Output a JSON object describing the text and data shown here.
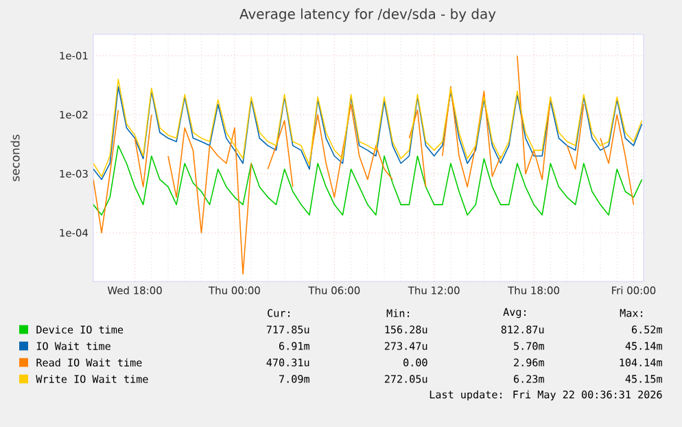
{
  "chart_data": {
    "type": "line",
    "title": "Average latency for /dev/sda - by day",
    "ylabel": "seconds",
    "log": "y",
    "grid": true,
    "legend": "bottom",
    "marker": "none",
    "line_style": "solid",
    "xlim": [
      "2026-05-20T15:30",
      "2026-05-22T00:36"
    ],
    "ylim": [
      1.5e-05,
      0.23
    ],
    "xticks": [
      {
        "value": "2026-05-20T18:00",
        "label": "Wed 18:00"
      },
      {
        "value": "2026-05-21T00:00",
        "label": "Thu 00:00"
      },
      {
        "value": "2026-05-21T06:00",
        "label": "Thu 06:00"
      },
      {
        "value": "2026-05-21T12:00",
        "label": "Thu 12:00"
      },
      {
        "value": "2026-05-21T18:00",
        "label": "Thu 18:00"
      },
      {
        "value": "2026-05-22T00:00",
        "label": "Fri 00:00"
      }
    ],
    "yticks": [
      {
        "value": 0.0001,
        "label": "1e-04"
      },
      {
        "value": 0.001,
        "label": "1e-03"
      },
      {
        "value": 0.01,
        "label": "1e-02"
      },
      {
        "value": 0.1,
        "label": "1e-01"
      }
    ],
    "x": [
      "2026-05-20T15:30",
      "2026-05-20T16:00",
      "2026-05-20T16:30",
      "2026-05-20T17:00",
      "2026-05-20T17:30",
      "2026-05-20T18:00",
      "2026-05-20T18:30",
      "2026-05-20T19:00",
      "2026-05-20T19:30",
      "2026-05-20T20:00",
      "2026-05-20T20:30",
      "2026-05-20T21:00",
      "2026-05-20T21:30",
      "2026-05-20T22:00",
      "2026-05-20T22:30",
      "2026-05-20T23:00",
      "2026-05-20T23:30",
      "2026-05-21T00:00",
      "2026-05-21T00:30",
      "2026-05-21T01:00",
      "2026-05-21T01:30",
      "2026-05-21T02:00",
      "2026-05-21T02:30",
      "2026-05-21T03:00",
      "2026-05-21T03:30",
      "2026-05-21T04:00",
      "2026-05-21T04:30",
      "2026-05-21T05:00",
      "2026-05-21T05:30",
      "2026-05-21T06:00",
      "2026-05-21T06:30",
      "2026-05-21T07:00",
      "2026-05-21T07:30",
      "2026-05-21T08:00",
      "2026-05-21T08:30",
      "2026-05-21T09:00",
      "2026-05-21T09:30",
      "2026-05-21T10:00",
      "2026-05-21T10:30",
      "2026-05-21T11:00",
      "2026-05-21T11:30",
      "2026-05-21T12:00",
      "2026-05-21T12:30",
      "2026-05-21T13:00",
      "2026-05-21T13:30",
      "2026-05-21T14:00",
      "2026-05-21T14:30",
      "2026-05-21T15:00",
      "2026-05-21T15:30",
      "2026-05-21T16:00",
      "2026-05-21T16:30",
      "2026-05-21T17:00",
      "2026-05-21T17:30",
      "2026-05-21T18:00",
      "2026-05-21T18:30",
      "2026-05-21T19:00",
      "2026-05-21T19:30",
      "2026-05-21T20:00",
      "2026-05-21T20:30",
      "2026-05-21T21:00",
      "2026-05-21T21:30",
      "2026-05-21T22:00",
      "2026-05-21T22:30",
      "2026-05-21T23:00",
      "2026-05-21T23:30",
      "2026-05-22T00:00",
      "2026-05-22T00:30"
    ],
    "series": [
      {
        "name": "Device IO time",
        "color": "#00cc00",
        "values": [
          0.0003,
          0.0002,
          0.0004,
          0.003,
          0.0015,
          0.0006,
          0.0003,
          0.002,
          0.0008,
          0.0006,
          0.0003,
          0.0015,
          0.0007,
          0.0005,
          0.0003,
          0.0012,
          0.0006,
          0.0004,
          0.0003,
          0.0015,
          0.0006,
          0.0004,
          0.0003,
          0.0012,
          0.0005,
          0.0003,
          0.0002,
          0.0015,
          0.0006,
          0.0003,
          0.0002,
          0.0012,
          0.0006,
          0.0003,
          0.0002,
          0.002,
          0.0007,
          0.0003,
          0.0003,
          0.002,
          0.0006,
          0.0003,
          0.0003,
          0.0015,
          0.0005,
          0.0002,
          0.0003,
          0.0018,
          0.0006,
          0.0003,
          0.0003,
          0.0015,
          0.0006,
          0.0003,
          0.0002,
          0.0015,
          0.0006,
          0.0004,
          0.0003,
          0.0015,
          0.0005,
          0.0003,
          0.0002,
          0.0012,
          0.0005,
          0.0004,
          0.0008
        ]
      },
      {
        "name": "IO Wait time",
        "color": "#0066b3",
        "values": [
          0.0012,
          0.0008,
          0.0015,
          0.03,
          0.006,
          0.004,
          0.0018,
          0.025,
          0.005,
          0.004,
          0.0035,
          0.02,
          0.004,
          0.0035,
          0.003,
          0.015,
          0.004,
          0.0025,
          0.0015,
          0.018,
          0.004,
          0.003,
          0.0025,
          0.02,
          0.003,
          0.0025,
          0.0012,
          0.018,
          0.004,
          0.002,
          0.0015,
          0.02,
          0.003,
          0.0025,
          0.002,
          0.017,
          0.003,
          0.0015,
          0.002,
          0.02,
          0.003,
          0.002,
          0.003,
          0.025,
          0.004,
          0.0015,
          0.0025,
          0.018,
          0.003,
          0.0015,
          0.003,
          0.022,
          0.004,
          0.002,
          0.002,
          0.017,
          0.004,
          0.003,
          0.0025,
          0.02,
          0.004,
          0.0025,
          0.003,
          0.018,
          0.004,
          0.003,
          0.007
        ]
      },
      {
        "name": "Read IO Wait time",
        "color": "#ff8000",
        "values": [
          0.0008,
          0.0001,
          0.001,
          0.012,
          null,
          0.004,
          0.0006,
          0.01,
          null,
          0.002,
          0.0004,
          0.006,
          0.0025,
          0.0001,
          0.003,
          0.002,
          0.0015,
          0.006,
          2e-05,
          0.0015,
          null,
          0.0012,
          0.003,
          0.008,
          0.0006,
          null,
          0.0015,
          0.01,
          0.0015,
          0.0004,
          0.0025,
          0.015,
          0.002,
          0.0008,
          0.003,
          0.0012,
          0.0008,
          null,
          0.004,
          0.012,
          0.0006,
          null,
          0.002,
          0.03,
          0.002,
          0.0006,
          0.003,
          0.025,
          0.0009,
          0.002,
          null,
          0.1,
          0.001,
          0.0025,
          0.0008,
          0.02,
          null,
          0.003,
          0.0012,
          0.015,
          null,
          0.004,
          0.0015,
          0.01,
          0.002,
          0.0003,
          null
        ]
      },
      {
        "name": "Write IO Wait time",
        "color": "#ffcc00",
        "values": [
          0.0015,
          0.0009,
          0.002,
          0.04,
          0.007,
          0.0045,
          0.002,
          0.028,
          0.006,
          0.0045,
          0.004,
          0.022,
          0.005,
          0.004,
          0.0035,
          0.018,
          0.005,
          0.003,
          0.0018,
          0.02,
          0.005,
          0.0035,
          0.003,
          0.022,
          0.0035,
          0.003,
          0.0014,
          0.02,
          0.005,
          0.0025,
          0.0018,
          0.022,
          0.0035,
          0.003,
          0.0025,
          0.02,
          0.0035,
          0.0018,
          0.0025,
          0.022,
          0.0035,
          0.0025,
          0.0035,
          0.028,
          0.005,
          0.0018,
          0.003,
          0.02,
          0.0035,
          0.0018,
          0.0035,
          0.025,
          0.005,
          0.0025,
          0.0025,
          0.02,
          0.005,
          0.0035,
          0.003,
          0.022,
          0.005,
          0.003,
          0.0035,
          0.02,
          0.005,
          0.0035,
          0.008
        ]
      }
    ],
    "annotations": [
      "Cur:",
      "Min:",
      "Avg:",
      "Max:",
      "717.85u",
      "156.28u",
      "812.87u",
      "6.52m",
      "6.91m",
      "273.47u",
      "5.70m",
      "45.14m",
      "470.31u",
      "0.00",
      "2.96m",
      "104.14m",
      "7.09m",
      "272.05u",
      "6.23m",
      "45.15m",
      "Last update: Fri May 22 00:36:31 2026"
    ]
  }
}
